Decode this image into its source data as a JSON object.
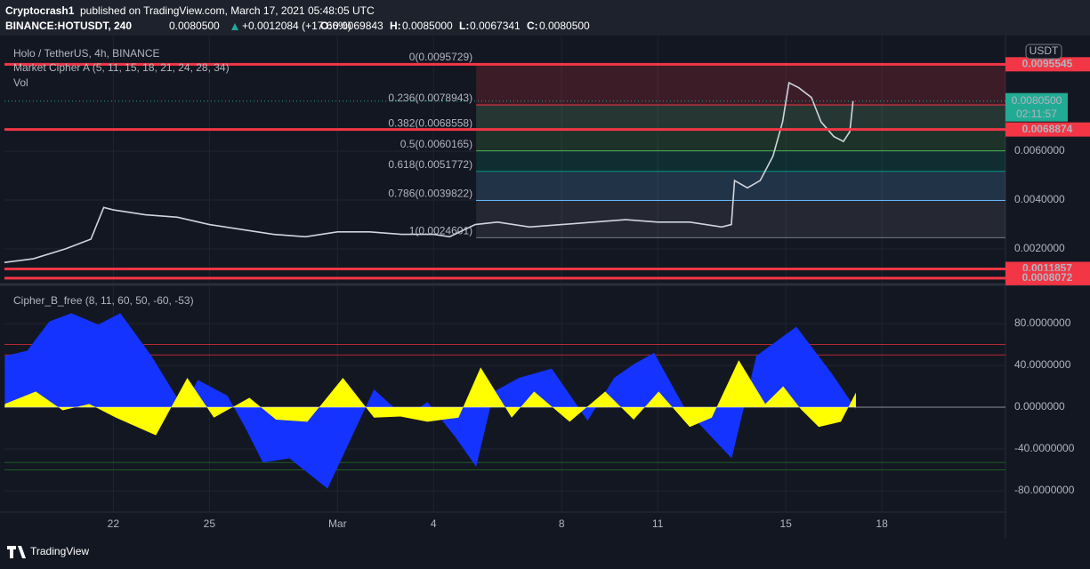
{
  "header": {
    "publisher": "Cryptocrash1",
    "published": "published on TradingView.com, March 17, 2021 05:48:05 UTC",
    "symbol": "BINANCE:HOTUSDT, 240",
    "last": "0.0080500",
    "change": "+0.0012084 (+17.66%)",
    "ohlc": [
      {
        "label": "O:",
        "value": "0.0069843"
      },
      {
        "label": "H:",
        "value": "0.0085000"
      },
      {
        "label": "L:",
        "value": "0.0067341"
      },
      {
        "label": "C:",
        "value": "0.0080500"
      }
    ]
  },
  "footer": {
    "brand": "TradingView"
  },
  "chart_data": [
    {
      "type": "line",
      "title": "Holo / TetherUS, 4h, BINANCE",
      "indicators": [
        "Market Cipher A (5, 11, 15, 18, 21, 24, 28, 34)",
        "Vol"
      ],
      "currency": "USDT",
      "series": [
        {
          "color": "#d1d4dc",
          "x": [
            49.6,
            50.5,
            51.5,
            52.3,
            52.7,
            53,
            53.5,
            54,
            55,
            56,
            57,
            58,
            59,
            60,
            61,
            62,
            63,
            63.5,
            64.3,
            65,
            66,
            67,
            68,
            69,
            70,
            71,
            72,
            72.3,
            72.4,
            72.8,
            73.2,
            73.6,
            73.9,
            74.1,
            74.4,
            74.8,
            75.1,
            75.5,
            75.8,
            76,
            76.1
          ],
          "values": [
            0.00145,
            0.0016,
            0.002,
            0.0024,
            0.0037,
            0.0036,
            0.0035,
            0.0034,
            0.0033,
            0.003,
            0.0028,
            0.0026,
            0.0025,
            0.0027,
            0.0027,
            0.0026,
            0.0026,
            0.0025,
            0.003,
            0.0031,
            0.0029,
            0.003,
            0.0031,
            0.0032,
            0.0031,
            0.0031,
            0.0029,
            0.003,
            0.0048,
            0.0045,
            0.0048,
            0.0058,
            0.0072,
            0.0088,
            0.0086,
            0.0082,
            0.0072,
            0.0066,
            0.0064,
            0.0068,
            0.00805
          ]
        }
      ],
      "xlim": [
        49.6,
        80.86
      ],
      "xticks": [
        {
          "value": 53,
          "label": "22"
        },
        {
          "value": 56,
          "label": "25"
        },
        {
          "value": 60,
          "label": "Mar"
        },
        {
          "value": 63,
          "label": "4"
        },
        {
          "value": 67,
          "label": "8"
        },
        {
          "value": 70,
          "label": "11"
        },
        {
          "value": 74,
          "label": "15"
        },
        {
          "value": 77,
          "label": "18"
        }
      ],
      "ylim": [
        0.00062,
        0.01073
      ],
      "yticks": [
        {
          "value": 0.002,
          "label": "0.0020000"
        },
        {
          "value": 0.004,
          "label": "0.0040000"
        },
        {
          "value": 0.006,
          "label": "0.0060000"
        }
      ],
      "grid": true,
      "fib": {
        "x_start": 64.33,
        "levels": [
          {
            "label": "0(0.0095729)",
            "value": 0.0095729,
            "color": "#787b86"
          },
          {
            "label": "0.236(0.0078943)",
            "value": 0.0078943,
            "color": "#f23645"
          },
          {
            "label": "0.382(0.0068558)",
            "value": 0.0068558,
            "color": "#81c784"
          },
          {
            "label": "0.5(0.0060165)",
            "value": 0.0060165,
            "color": "#4caf50"
          },
          {
            "label": "0.618(0.0051772)",
            "value": 0.0051772,
            "color": "#089981"
          },
          {
            "label": "0.786(0.0039822)",
            "value": 0.0039822,
            "color": "#64b5f6"
          },
          {
            "label": "1(0.0024601)",
            "value": 0.0024601,
            "color": "#787b86"
          }
        ]
      },
      "price_lines": [
        {
          "value": 0.0095545,
          "label": "0.0095545",
          "color": "#f23645"
        },
        {
          "value": 0.0068874,
          "label": "0.0068874",
          "color": "#f23645"
        },
        {
          "value": 0.0011857,
          "label": "0.0011857",
          "color": "#f23645"
        },
        {
          "value": 0.0008072,
          "label": "0.0008072",
          "color": "#f23645"
        }
      ],
      "last_price": {
        "value": 0.00805,
        "label": "0.0080500",
        "countdown": "02:11:57",
        "color": "#22ab94"
      }
    },
    {
      "type": "area",
      "title": "Cipher_B_free (8, 11, 60, 50, -60, -53)",
      "series": [
        {
          "color": "#1433ff",
          "x": [
            49.61,
            50.31,
            51.0,
            51.69,
            52.53,
            53.22,
            54.19,
            55.17,
            55.64,
            56.56,
            57.11,
            57.67,
            58.5,
            59.69,
            61.14,
            62.11,
            62.81,
            63.64,
            64.33,
            64.89,
            65.67,
            66.69,
            67.81,
            68.64,
            69.25,
            69.89,
            70.86,
            72.31,
            73.08,
            74.33,
            75.44,
            76.19
          ],
          "values": [
            49,
            54,
            82,
            90,
            79,
            90,
            49,
            0,
            26,
            11,
            -19,
            -53,
            -49,
            -78,
            17,
            -10,
            5,
            -27,
            -57,
            15,
            28,
            37,
            -13,
            28,
            41,
            52,
            -2,
            -49,
            49,
            77,
            32,
            -2
          ]
        },
        {
          "color": "#ffff00",
          "x": [
            49.61,
            50.58,
            51.42,
            52.25,
            53.08,
            54.33,
            55.31,
            56.14,
            57.25,
            58.08,
            59.06,
            60.17,
            61.14,
            61.97,
            62.81,
            63.78,
            64.47,
            65.44,
            66.14,
            67.25,
            68.36,
            69.25,
            70.03,
            71.0,
            71.69,
            72.53,
            73.36,
            73.92,
            74.47,
            75.03,
            75.72,
            76.19
          ],
          "values": [
            3,
            15,
            -3,
            3,
            -10,
            -27,
            28,
            -10,
            9,
            -12,
            -14,
            28,
            -10,
            -9,
            -14,
            -10,
            38,
            -10,
            15,
            -14,
            15,
            -12,
            15,
            -19,
            -10,
            45,
            3,
            20,
            -2,
            -19,
            -14,
            14
          ]
        }
      ],
      "levels": [
        {
          "value": 60,
          "color": "#b22833"
        },
        {
          "value": 50,
          "color": "#b22833"
        },
        {
          "value": -53,
          "color": "#1b5e20"
        },
        {
          "value": -60,
          "color": "#1b5e20"
        }
      ],
      "xlim": [
        49.6,
        80.86
      ],
      "xticks": [
        {
          "value": 53,
          "label": "22"
        },
        {
          "value": 56,
          "label": "25"
        },
        {
          "value": 60,
          "label": "Mar"
        },
        {
          "value": 63,
          "label": "4"
        },
        {
          "value": 67,
          "label": "8"
        },
        {
          "value": 70,
          "label": "11"
        },
        {
          "value": 74,
          "label": "15"
        },
        {
          "value": 77,
          "label": "18"
        }
      ],
      "ylim": [
        -99.6,
        115.7
      ],
      "yticks": [
        {
          "value": 80,
          "label": "80.0000000"
        },
        {
          "value": 40,
          "label": "40.0000000"
        },
        {
          "value": 0,
          "label": "0.0000000"
        },
        {
          "value": -40,
          "label": "-40.0000000"
        },
        {
          "value": -80,
          "label": "-80.0000000"
        }
      ],
      "grid": true
    }
  ]
}
